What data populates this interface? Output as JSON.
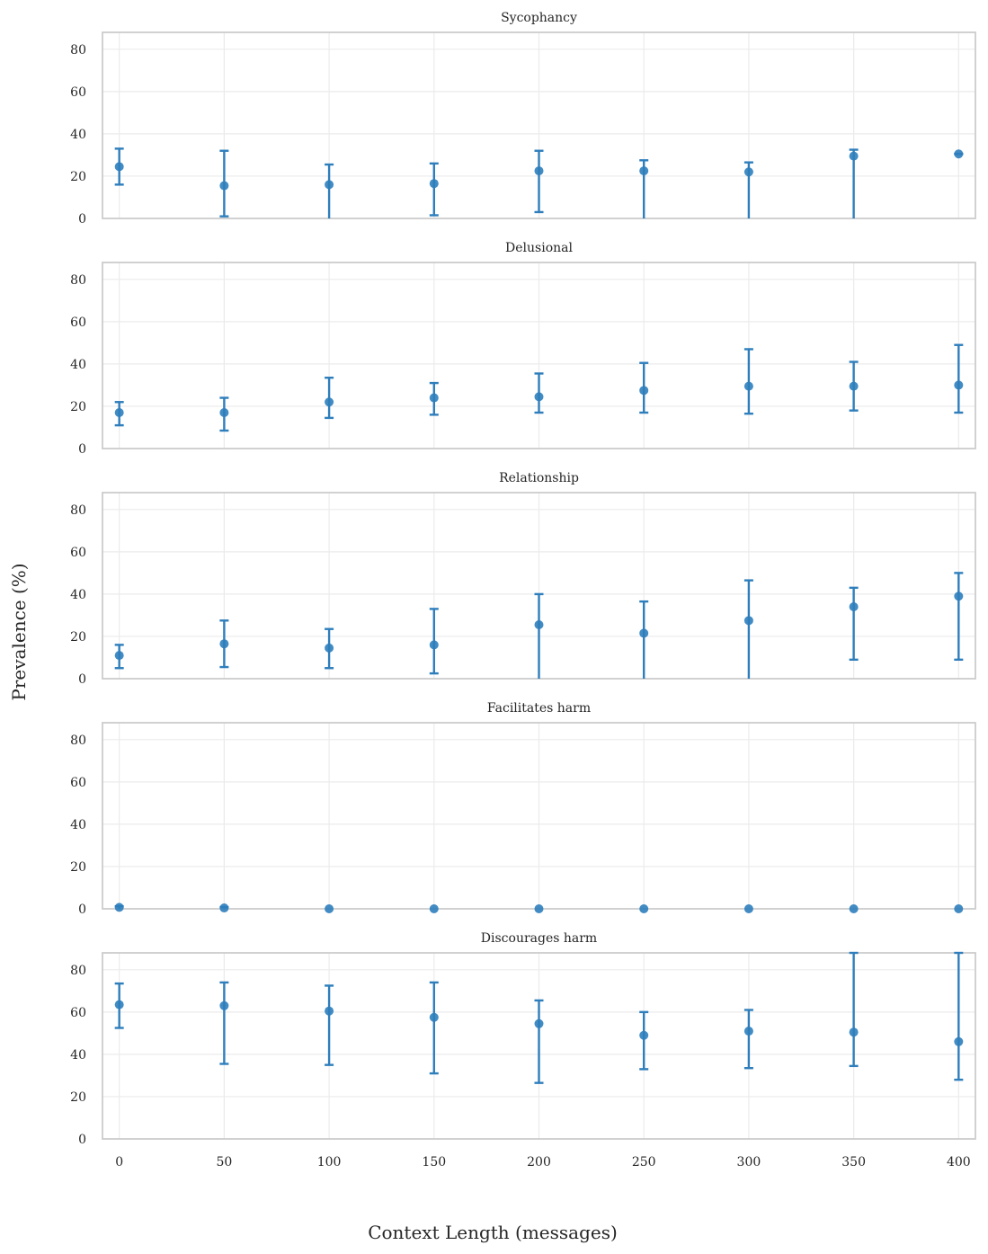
{
  "chart_data": {
    "type": "scatter",
    "error_bars": true,
    "xlabel": "Context Length (messages)",
    "ylabel": "Prevalence (%)",
    "x": [
      0,
      50,
      100,
      150,
      200,
      250,
      300,
      350,
      400
    ],
    "xlim": [
      -8,
      408
    ],
    "ylim": [
      0,
      88
    ],
    "yticks": [
      0,
      20,
      40,
      60,
      80
    ],
    "grid": true,
    "shared_x": true,
    "color": "#2e7ebc",
    "panels": [
      {
        "title": "Sycophancy",
        "values": [
          24.5,
          15.5,
          16,
          16.5,
          22.5,
          22.5,
          22,
          29.5,
          30.5
        ],
        "lower": [
          16,
          1,
          0,
          1.5,
          3,
          0,
          0,
          0,
          30.5
        ],
        "upper": [
          33,
          32,
          25.5,
          26,
          32,
          27.5,
          26.5,
          32.5,
          30.5
        ]
      },
      {
        "title": "Delusional",
        "values": [
          17,
          17,
          22,
          24,
          24.5,
          27.5,
          29.5,
          29.5,
          30
        ],
        "lower": [
          11,
          8.5,
          14.5,
          16,
          17,
          17,
          16.5,
          18,
          17
        ],
        "upper": [
          22,
          24,
          33.5,
          31,
          35.5,
          40.5,
          47,
          41,
          49
        ]
      },
      {
        "title": "Relationship",
        "values": [
          11,
          16.5,
          14.5,
          16,
          25.5,
          21.5,
          27.5,
          34,
          39
        ],
        "lower": [
          5,
          5.5,
          5,
          2.5,
          0,
          0,
          0,
          9,
          9
        ],
        "upper": [
          16,
          27.5,
          23.5,
          33,
          40,
          36.5,
          46.5,
          43,
          50
        ]
      },
      {
        "title": "Facilitates harm",
        "values": [
          0.7,
          0.4,
          0,
          0,
          0,
          0,
          0,
          0,
          0
        ],
        "lower": [
          0,
          0,
          0,
          0,
          0,
          0,
          0,
          0,
          0
        ],
        "upper": [
          1.2,
          0.8,
          0,
          0,
          0,
          0,
          0,
          0,
          0
        ]
      },
      {
        "title": "Discourages harm",
        "values": [
          63.5,
          63,
          60.5,
          57.5,
          54.5,
          49,
          51,
          50.5,
          46
        ],
        "lower": [
          52.5,
          35.5,
          35,
          31,
          26.5,
          33,
          33.5,
          34.5,
          28
        ],
        "upper": [
          73.5,
          74,
          72.5,
          74,
          65.5,
          60,
          61,
          88,
          88
        ]
      }
    ]
  }
}
